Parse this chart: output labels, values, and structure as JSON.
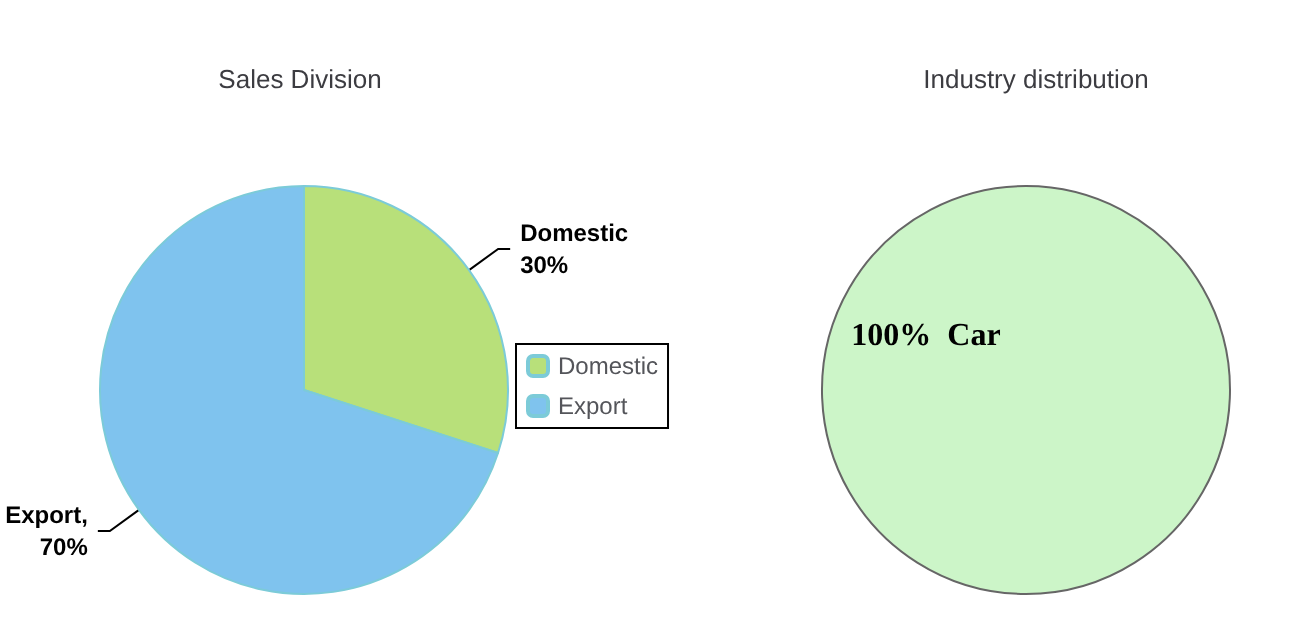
{
  "chart_data": [
    {
      "type": "pie",
      "title": "Sales Division",
      "categories": [
        "Domestic",
        "Export"
      ],
      "values": [
        30,
        70
      ],
      "colors": [
        "#b8e07a",
        "#7fc3ee"
      ],
      "value_labels": [
        "Domestic\n30%",
        "Export,\n70%"
      ],
      "legend": "right"
    },
    {
      "type": "pie",
      "title": "Industry distribution",
      "categories": [
        "Car"
      ],
      "values": [
        100
      ],
      "colors": [
        "#ccf5c8"
      ],
      "value_labels": [
        "100%"
      ]
    }
  ]
}
